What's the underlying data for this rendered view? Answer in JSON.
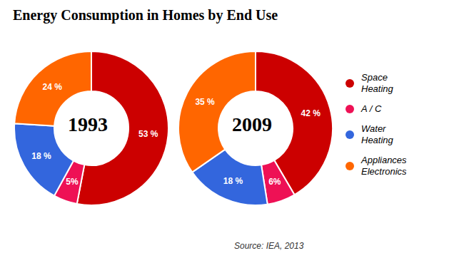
{
  "chart_data": {
    "type": "pie",
    "title": "Energy Consumption in Homes by End Use",
    "categories": [
      "Space\nHeating",
      "A / C",
      "Water\nHeating",
      "Appliances\nElectronics"
    ],
    "colors": [
      "#cc0000",
      "#ee1155",
      "#3366dd",
      "#ff6600"
    ],
    "series": [
      {
        "name": "1993",
        "values": [
          53,
          5,
          18,
          24
        ],
        "value_labels": [
          "53 %",
          "5%",
          "18 %",
          "24 %"
        ]
      },
      {
        "name": "2009",
        "values": [
          42,
          6,
          18,
          35
        ],
        "value_labels": [
          "42 %",
          "6%",
          "18 %",
          "35 %"
        ]
      }
    ],
    "data_labels": true,
    "legend": "right",
    "annotations": [
      "Source: IEA, 2013"
    ]
  }
}
